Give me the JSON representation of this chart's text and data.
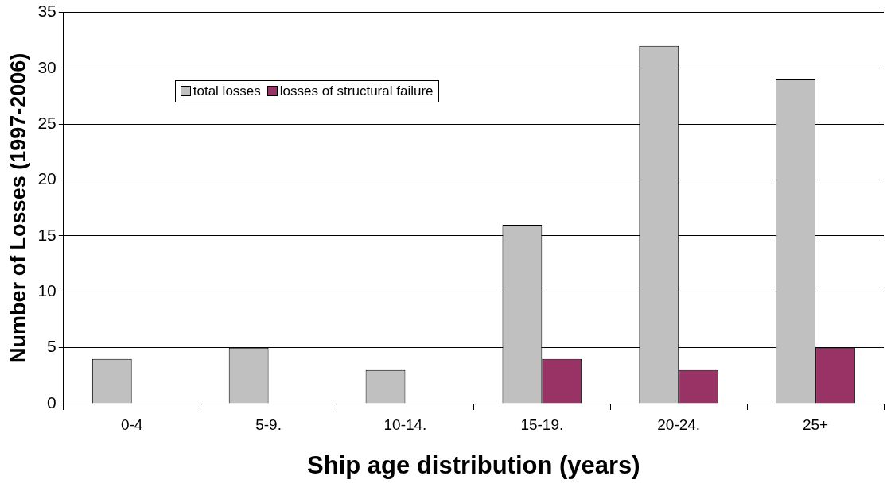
{
  "chart_data": {
    "type": "bar",
    "xlabel": "Ship age distribution (years)",
    "ylabel": "Number of Losses (1997-2006)",
    "categories": [
      "0-4",
      "5-9.",
      "10-14.",
      "15-19.",
      "20-24.",
      "25+"
    ],
    "series": [
      {
        "name": "total losses",
        "color": "#c0c0c0",
        "values": [
          4,
          5,
          3,
          16,
          32,
          29
        ]
      },
      {
        "name": "losses of structural failure",
        "color": "#993366",
        "values": [
          0,
          0,
          0,
          4,
          3,
          5
        ]
      }
    ],
    "ylim": [
      0,
      35
    ],
    "yticks": [
      0,
      5,
      10,
      15,
      20,
      25,
      30,
      35
    ],
    "grid": "y",
    "legend": "top left"
  }
}
